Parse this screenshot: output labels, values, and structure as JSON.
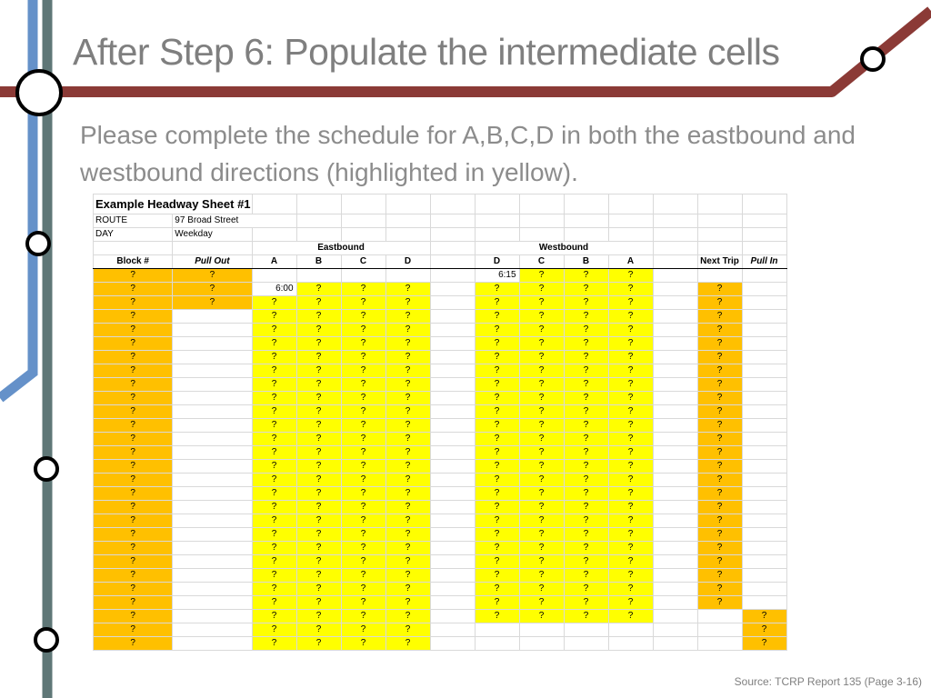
{
  "slide": {
    "title": "After Step 6: Populate the intermediate cells",
    "body": "Please complete the schedule for A,B,C,D in both the eastbound and westbound directions (highlighted in yellow).",
    "source": "Source: TCRP Report 135 (Page 3-16)"
  },
  "colors": {
    "line_blue": "#6591c9",
    "line_slate": "#5f7777",
    "line_red": "#8b3a36",
    "highlight_orange": "#ffc000",
    "highlight_yellow": "#ffff00",
    "title_text": "#7f7f7f"
  },
  "sheet": {
    "title": "Example Headway Sheet #1",
    "route_label": "ROUTE",
    "route_value": "97 Broad Street",
    "day_label": "DAY",
    "day_value": "Weekday",
    "eastbound_label": "Eastbound",
    "westbound_label": "Westbound",
    "columns": [
      "Block #",
      "Pull Out",
      "A",
      "B",
      "C",
      "D",
      "",
      "D",
      "C",
      "B",
      "A",
      "",
      "Next Trip",
      "Pull In"
    ],
    "first_eastbound_time": "6:00",
    "first_westbound_time": "6:15",
    "unknown_marker": "?",
    "data_row_count": 28
  }
}
